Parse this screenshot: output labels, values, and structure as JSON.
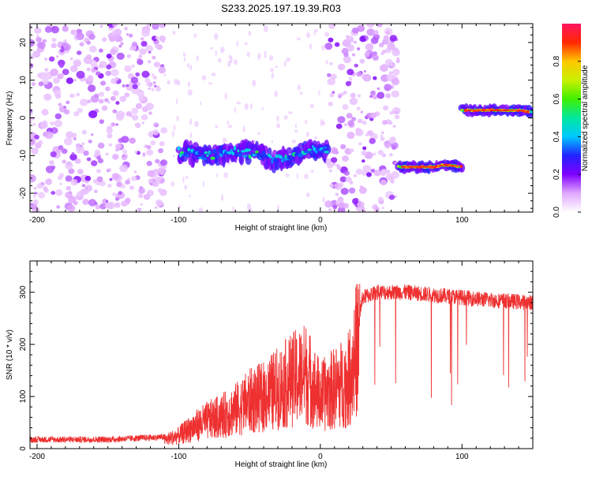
{
  "title": "S233.2025.197.19.39.R03",
  "chart_data": [
    {
      "type": "heatmap",
      "xlabel": "Height of straight line (km)",
      "ylabel": "Frequency (Hz)",
      "xlim": [
        -205,
        150
      ],
      "ylim": [
        -25,
        25
      ],
      "x_ticks": [
        -200,
        -100,
        0,
        100
      ],
      "y_ticks": [
        -20,
        -10,
        0,
        10,
        20
      ],
      "colorbar": {
        "label": "Normalized spectral amplitude",
        "range": [
          0,
          1
        ],
        "ticks": [
          0.0,
          0.2,
          0.4,
          0.6,
          0.8
        ]
      },
      "grid": false,
      "ridges": [
        {
          "x": [
            -100,
            -80,
            -60,
            -45,
            -35,
            -25,
            -15,
            -5,
            5
          ],
          "y": [
            -9,
            -10,
            -9,
            -9.5,
            -11,
            -11,
            -9.5,
            -8.5,
            -8.5
          ],
          "amplitude": 0.45
        },
        {
          "x": [
            55,
            60,
            70,
            80,
            88,
            100
          ],
          "y": [
            -13,
            -13,
            -13,
            -13,
            -12.5,
            -13
          ],
          "amplitude": 0.95
        },
        {
          "x": [
            100,
            110,
            120,
            130,
            140,
            150
          ],
          "y": [
            2,
            2,
            2,
            2,
            2,
            1.5
          ],
          "amplitude": 0.95
        }
      ],
      "noise_regions": [
        {
          "x": [
            -205,
            -110
          ],
          "y": [
            -25,
            25
          ],
          "amplitude": 0.15
        },
        {
          "x": [
            5,
            55
          ],
          "y": [
            -25,
            25
          ],
          "amplitude": 0.15
        }
      ]
    },
    {
      "type": "line",
      "xlabel": "Height of straight line (km)",
      "ylabel": "SNR (10 * v/v)",
      "xlim": [
        -205,
        150
      ],
      "ylim": [
        0,
        360
      ],
      "x_ticks": [
        -200,
        -100,
        0,
        100
      ],
      "y_ticks": [
        0,
        100,
        200,
        300
      ],
      "grid": false,
      "color": "#ee3030",
      "series": [
        {
          "x": [
            -205,
            -150,
            -110,
            -100,
            -90,
            -80,
            -70,
            -60,
            -50,
            -40,
            -30,
            -20,
            -10,
            0,
            10,
            20,
            30,
            40,
            50,
            60,
            80,
            100,
            120,
            150
          ],
          "y": [
            15,
            15,
            20,
            30,
            50,
            65,
            75,
            90,
            110,
            120,
            140,
            160,
            175,
            120,
            140,
            160,
            290,
            300,
            300,
            300,
            295,
            290,
            285,
            280
          ]
        }
      ]
    }
  ]
}
